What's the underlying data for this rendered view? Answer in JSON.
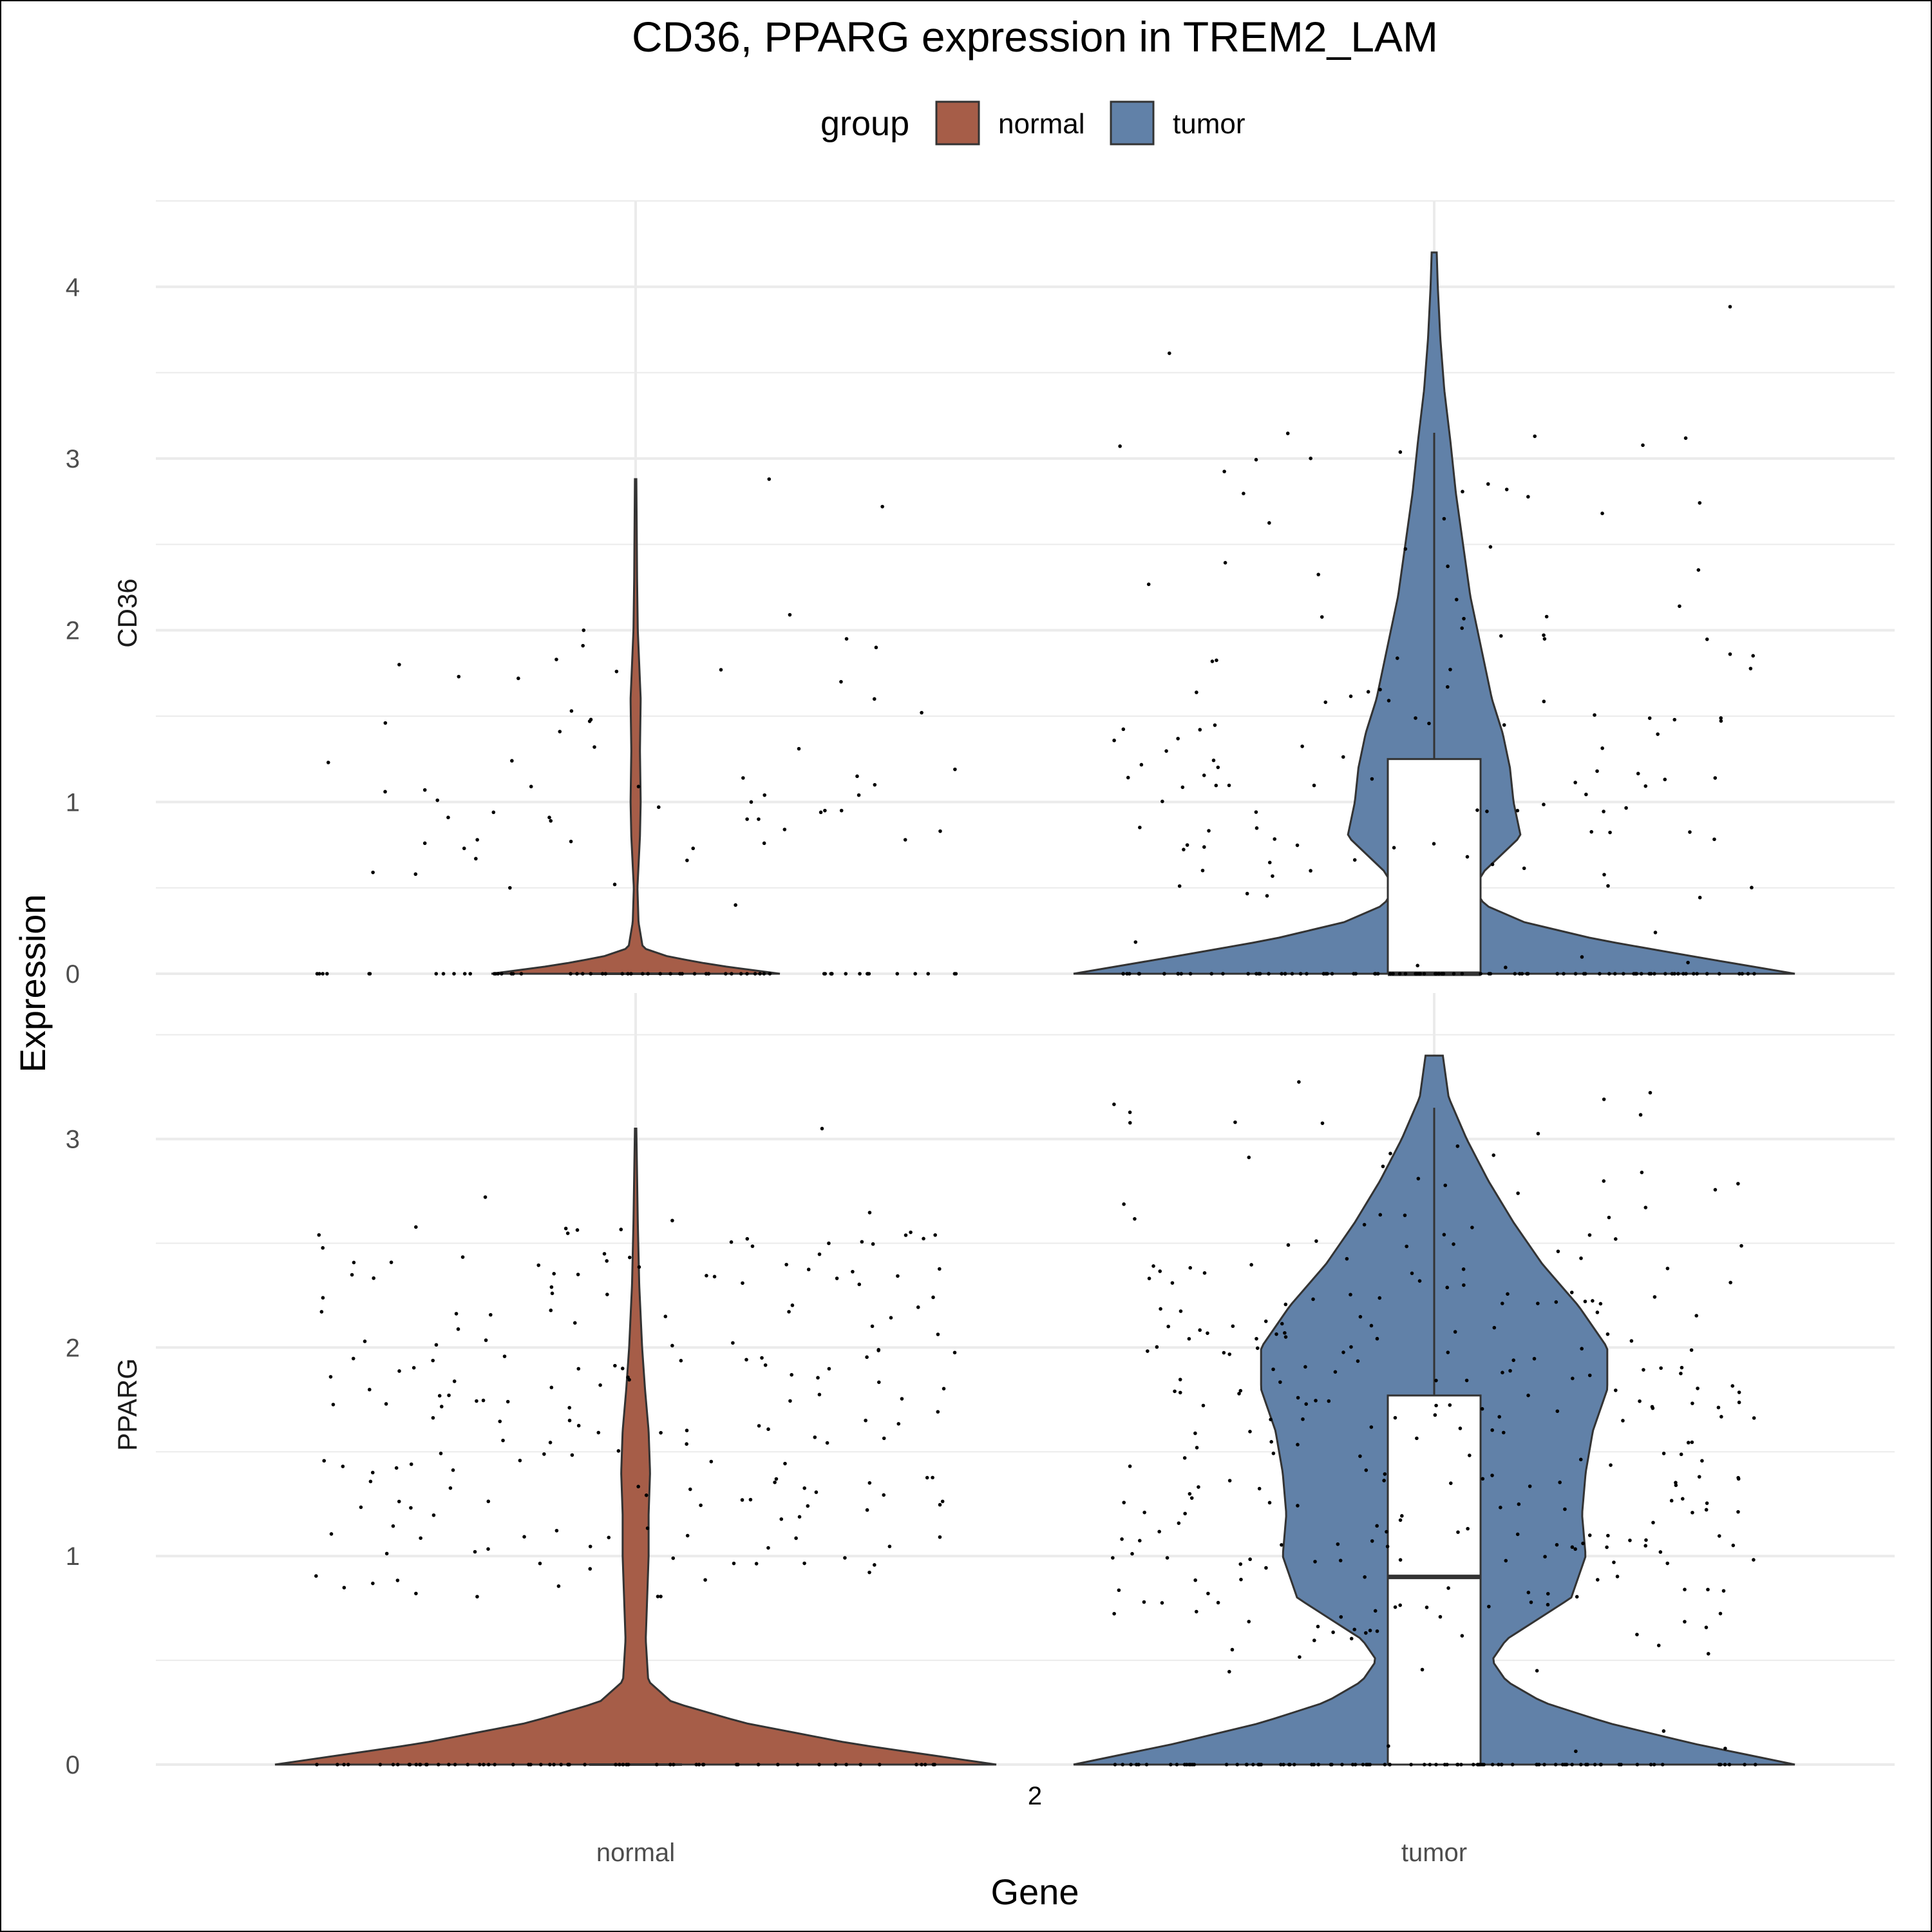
{
  "chart_data": {
    "type": "violin",
    "title": "CD36, PPARG expression in TREM2_LAM",
    "xlabel": "Gene",
    "ylabel": "Expression",
    "x_subtitle": "2",
    "categories": [
      "normal",
      "tumor"
    ],
    "legend": {
      "title": "group",
      "position": "top",
      "entries": [
        {
          "label": "normal",
          "color": "#A65D48"
        },
        {
          "label": "tumor",
          "color": "#6181A8"
        }
      ]
    },
    "grid": true,
    "panels": [
      {
        "label": "CD36",
        "ylim": [
          0,
          4.5
        ],
        "yticks": [
          0,
          1,
          2,
          3,
          4
        ],
        "violins": [
          {
            "group": "normal",
            "max": 2.88,
            "profile": [
              [
                0,
                0.4
              ],
              [
                0.05,
                0.22
              ],
              [
                0.1,
                0.09
              ],
              [
                0.15,
                0.02
              ],
              [
                0.3,
                0.008
              ],
              [
                0.5,
                0.005
              ],
              [
                0.8,
                0.012
              ],
              [
                1.0,
                0.014
              ],
              [
                1.3,
                0.012
              ],
              [
                1.6,
                0.014
              ],
              [
                1.8,
                0.01
              ],
              [
                2.0,
                0.006
              ],
              [
                2.3,
                0.004
              ],
              [
                2.6,
                0.003
              ],
              [
                2.88,
                0.002
              ]
            ]
          },
          {
            "group": "tumor",
            "max": 4.2,
            "profile": [
              [
                0,
                1.0
              ],
              [
                0.1,
                0.72
              ],
              [
                0.2,
                0.45
              ],
              [
                0.3,
                0.25
              ],
              [
                0.4,
                0.14
              ],
              [
                0.5,
                0.11
              ],
              [
                0.6,
                0.14
              ],
              [
                0.8,
                0.24
              ],
              [
                1.0,
                0.22
              ],
              [
                1.2,
                0.21
              ],
              [
                1.4,
                0.19
              ],
              [
                1.6,
                0.16
              ],
              [
                1.8,
                0.14
              ],
              [
                2.0,
                0.12
              ],
              [
                2.2,
                0.1
              ],
              [
                2.5,
                0.08
              ],
              [
                2.8,
                0.06
              ],
              [
                3.1,
                0.045
              ],
              [
                3.4,
                0.028
              ],
              [
                3.7,
                0.017
              ],
              [
                4.0,
                0.01
              ],
              [
                4.2,
                0.007
              ]
            ]
          }
        ],
        "boxes": [
          {
            "group": "normal",
            "q1": 0,
            "median": 0,
            "q3": 0,
            "whisker_high": 0
          },
          {
            "group": "tumor",
            "q1": 0,
            "median": 0,
            "q3": 1.25,
            "whisker_high": 3.15
          }
        ],
        "points_normal": [
          [
            0.39,
            0.4
          ],
          [
            0.08,
            0.5
          ],
          [
            1.77,
            1.77
          ],
          [
            1.2,
            1.19
          ],
          [
            0.99,
            1.0
          ],
          [
            0.9,
            0.9
          ],
          [
            0.76,
            0.76
          ],
          [
            2.72,
            2.72
          ],
          [
            2.88,
            2.88
          ],
          [
            1.95,
            1.95
          ],
          [
            2.09,
            2.09
          ],
          [
            1.09,
            1.09
          ],
          [
            0.95,
            0.95
          ],
          [
            1.01,
            1.01
          ],
          [
            0.66,
            0.66
          ],
          [
            0.73,
            0.73
          ],
          [
            0.91,
            0.91
          ],
          [
            0.94,
            0.94
          ],
          [
            1.1,
            1.1
          ],
          [
            1.15,
            1.15
          ],
          [
            1.46,
            1.46
          ],
          [
            1.76,
            1.76
          ],
          [
            0.84,
            0.84
          ],
          [
            0.91,
            0.91
          ],
          [
            0.94,
            0.94
          ],
          [
            0.89,
            0.89
          ],
          [
            0.78,
            0.78
          ],
          [
            1.6,
            1.6
          ],
          [
            2.0,
            2.0
          ],
          [
            1.47,
            1.47
          ],
          [
            0.95,
            0.95
          ],
          [
            1.07,
            1.07
          ],
          [
            0.58,
            0.58
          ],
          [
            1.72,
            1.72
          ],
          [
            1.83,
            1.83
          ],
          [
            1.09,
            1.09
          ],
          [
            0.83,
            0.83
          ],
          [
            0.52,
            0.52
          ],
          [
            1.31,
            1.31
          ],
          [
            1.73,
            1.73
          ],
          [
            1.32,
            1.32
          ],
          [
            1.9,
            1.9
          ],
          [
            1.7,
            1.7
          ],
          [
            1.24,
            1.24
          ],
          [
            0.97,
            0.97
          ],
          [
            1.04,
            1.04
          ],
          [
            1.04,
            1.04
          ],
          [
            1.06,
            1.06
          ],
          [
            0.73,
            0.73
          ],
          [
            0.59,
            0.59
          ],
          [
            0.9,
            0.9
          ],
          [
            0.77,
            0.77
          ],
          [
            0.76,
            0.76
          ],
          [
            0.78,
            0.78
          ],
          [
            1.41,
            1.41
          ],
          [
            1.53,
            1.53
          ],
          [
            1.91,
            1.91
          ],
          [
            1.52,
            1.52
          ],
          [
            1.48,
            1.48
          ],
          [
            1.23,
            1.23
          ],
          [
            0.67,
            0.67
          ],
          [
            1.8,
            1.8
          ],
          [
            1.14,
            1.14
          ]
        ],
        "points_tumor_count": 130
      },
      {
        "label": "PPARG",
        "ylim": [
          0,
          3.7
        ],
        "yticks": [
          0,
          1,
          2,
          3
        ],
        "violins": [
          {
            "group": "normal",
            "max": 3.05,
            "profile": [
              [
                0,
                1.0
              ],
              [
                0.1,
                0.6
              ],
              [
                0.2,
                0.3
              ],
              [
                0.3,
                0.1
              ],
              [
                0.4,
                0.035
              ],
              [
                0.6,
                0.028
              ],
              [
                0.8,
                0.032
              ],
              [
                1.0,
                0.036
              ],
              [
                1.2,
                0.036
              ],
              [
                1.4,
                0.04
              ],
              [
                1.6,
                0.036
              ],
              [
                1.8,
                0.026
              ],
              [
                2.0,
                0.018
              ],
              [
                2.3,
                0.01
              ],
              [
                2.6,
                0.006
              ],
              [
                3.05,
                0.002
              ]
            ]
          },
          {
            "group": "tumor",
            "max": 3.4,
            "profile": [
              [
                0,
                1.0
              ],
              [
                0.1,
                0.72
              ],
              [
                0.2,
                0.48
              ],
              [
                0.3,
                0.3
              ],
              [
                0.4,
                0.2
              ],
              [
                0.5,
                0.16
              ],
              [
                0.6,
                0.2
              ],
              [
                0.8,
                0.38
              ],
              [
                1.0,
                0.42
              ],
              [
                1.2,
                0.41
              ],
              [
                1.4,
                0.42
              ],
              [
                1.6,
                0.44
              ],
              [
                1.8,
                0.48
              ],
              [
                2.0,
                0.48
              ],
              [
                2.2,
                0.4
              ],
              [
                2.4,
                0.3
              ],
              [
                2.6,
                0.22
              ],
              [
                2.8,
                0.15
              ],
              [
                3.0,
                0.09
              ],
              [
                3.2,
                0.04
              ],
              [
                3.4,
                0.024
              ]
            ]
          }
        ],
        "boxes": [
          {
            "group": "normal",
            "q1": 0,
            "median": 0,
            "q3": 0,
            "whisker_high": 0
          },
          {
            "group": "tumor",
            "q1": 0,
            "median": 0.9,
            "q3": 1.77,
            "whisker_high": 3.15
          }
        ],
        "points_normal_count": 200,
        "points_tumor_count": 300
      }
    ]
  }
}
